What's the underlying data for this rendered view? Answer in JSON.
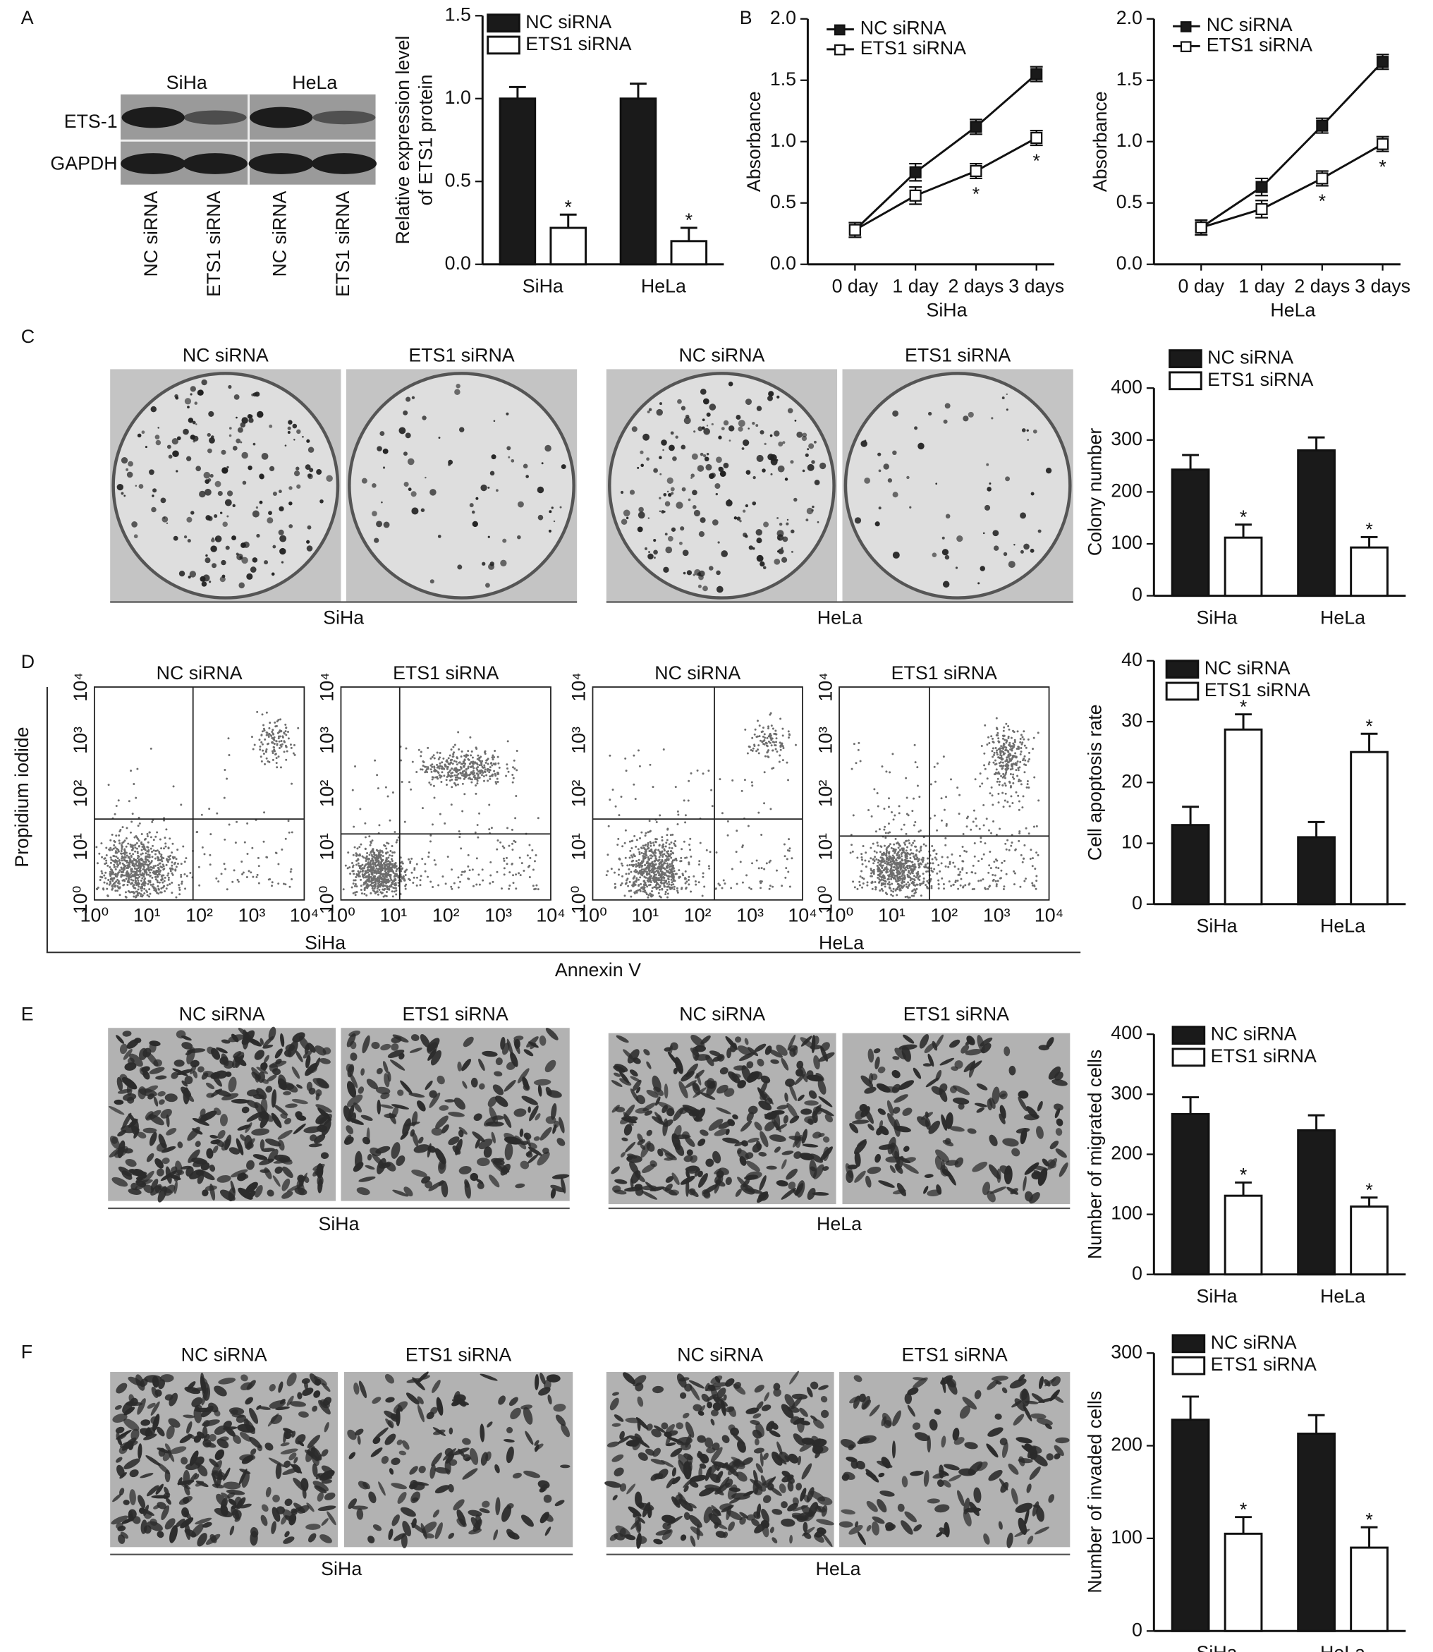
{
  "chart_data": [
    {
      "type": "bar",
      "ylabel": [
        "Relative expression level",
        "of ETS1 protein"
      ],
      "categories": [
        "SiHa",
        "HeLa"
      ],
      "series": [
        {
          "name": "NC siRNA",
          "color": "#1a1a1a",
          "values": [
            1.0,
            1.0
          ],
          "errors": [
            0.07,
            0.09
          ],
          "annotations": [
            null,
            null
          ]
        },
        {
          "name": "ETS1 siRNA",
          "color": "#ffffff",
          "values": [
            0.22,
            0.14
          ],
          "errors": [
            0.08,
            0.08
          ],
          "annotations": [
            "*",
            "*"
          ]
        }
      ],
      "ylim": [
        0,
        1.5
      ],
      "yticks": [
        {
          "value": 0,
          "label": "0.0"
        },
        0.5,
        {
          "value": 1,
          "label": "1.0"
        },
        1.5
      ]
    },
    {
      "type": "line",
      "ylabel": "Absorbance",
      "xlabel": "SiHa",
      "categories": [
        "0 day",
        "1 day",
        "2 days",
        "3 days"
      ],
      "series": [
        {
          "name": "NC siRNA",
          "color": "#1a1a1a",
          "values": [
            0.28,
            0.75,
            1.12,
            1.55
          ],
          "errors": [
            0.06,
            0.07,
            0.06,
            0.06
          ],
          "annotations": [
            null,
            null,
            null,
            null
          ]
        },
        {
          "name": "ETS1 siRNA",
          "color": "#ffffff",
          "values": [
            0.28,
            0.56,
            0.76,
            1.03
          ],
          "errors": [
            0.06,
            0.07,
            0.06,
            0.06
          ],
          "annotations": [
            null,
            null,
            "*",
            "*"
          ]
        }
      ],
      "ylim": [
        0,
        2
      ],
      "yticks": [
        {
          "value": 0,
          "label": "0.0"
        },
        0.5,
        {
          "value": 1,
          "label": "1.0"
        },
        1.5,
        {
          "value": 2,
          "label": "2.0"
        }
      ]
    },
    {
      "type": "line",
      "ylabel": "Absorbance",
      "xlabel": "HeLa",
      "categories": [
        "0 day",
        "1 day",
        "2 days",
        "3 days"
      ],
      "series": [
        {
          "name": "NC siRNA",
          "color": "#1a1a1a",
          "values": [
            0.3,
            0.63,
            1.13,
            1.65
          ],
          "errors": [
            0.06,
            0.07,
            0.06,
            0.06
          ],
          "annotations": [
            null,
            null,
            null,
            null
          ]
        },
        {
          "name": "ETS1 siRNA",
          "color": "#ffffff",
          "values": [
            0.3,
            0.45,
            0.7,
            0.98
          ],
          "errors": [
            0.06,
            0.07,
            0.06,
            0.06
          ],
          "annotations": [
            null,
            null,
            "*",
            "*"
          ]
        }
      ],
      "ylim": [
        0,
        2
      ],
      "yticks": [
        {
          "value": 0,
          "label": "0.0"
        },
        0.5,
        {
          "value": 1,
          "label": "1.0"
        },
        1.5,
        {
          "value": 2,
          "label": "2.0"
        }
      ]
    },
    {
      "type": "bar",
      "ylabel": "Colony number",
      "categories": [
        "SiHa",
        "HeLa"
      ],
      "series": [
        {
          "name": "NC siRNA",
          "color": "#1a1a1a",
          "values": [
            243,
            280
          ],
          "errors": [
            28,
            25
          ],
          "annotations": [
            null,
            null
          ]
        },
        {
          "name": "ETS1 siRNA",
          "color": "#ffffff",
          "values": [
            112,
            93
          ],
          "errors": [
            25,
            20
          ],
          "annotations": [
            "*",
            "*"
          ]
        }
      ],
      "ylim": [
        0,
        400
      ],
      "yticks": [
        0,
        100,
        200,
        300,
        400
      ]
    },
    {
      "type": "bar",
      "ylabel": "Cell apoptosis rate",
      "categories": [
        "SiHa",
        "HeLa"
      ],
      "series": [
        {
          "name": "NC siRNA",
          "color": "#1a1a1a",
          "values": [
            13,
            11
          ],
          "errors": [
            3,
            2.5
          ],
          "annotations": [
            null,
            null
          ]
        },
        {
          "name": "ETS1 siRNA",
          "color": "#ffffff",
          "values": [
            28.7,
            25
          ],
          "errors": [
            2.5,
            3
          ],
          "annotations": [
            "*",
            "*"
          ]
        }
      ],
      "ylim": [
        0,
        40
      ],
      "yticks": [
        0,
        10,
        20,
        30,
        40
      ]
    },
    {
      "type": "bar",
      "ylabel": "Number of migrated cells",
      "categories": [
        "SiHa",
        "HeLa"
      ],
      "series": [
        {
          "name": "NC siRNA",
          "color": "#1a1a1a",
          "values": [
            267,
            240
          ],
          "errors": [
            28,
            25
          ],
          "annotations": [
            null,
            null
          ]
        },
        {
          "name": "ETS1 siRNA",
          "color": "#ffffff",
          "values": [
            131,
            113
          ],
          "errors": [
            22,
            15
          ],
          "annotations": [
            "*",
            "*"
          ]
        }
      ],
      "ylim": [
        0,
        400
      ],
      "yticks": [
        0,
        100,
        200,
        300,
        400
      ]
    },
    {
      "type": "bar",
      "ylabel": "Number of invaded cells",
      "categories": [
        "SiHa",
        "HeLa"
      ],
      "series": [
        {
          "name": "NC siRNA",
          "color": "#1a1a1a",
          "values": [
            228,
            213
          ],
          "errors": [
            25,
            20
          ],
          "annotations": [
            null,
            null
          ]
        },
        {
          "name": "ETS1 siRNA",
          "color": "#ffffff",
          "values": [
            105,
            90
          ],
          "errors": [
            18,
            22
          ],
          "annotations": [
            "*",
            "*"
          ]
        }
      ],
      "ylim": [
        0,
        300
      ],
      "yticks": [
        0,
        100,
        200,
        300
      ]
    }
  ],
  "figure": {
    "panel_labels": [
      "A",
      "B",
      "C",
      "D",
      "E",
      "F"
    ],
    "blot": {
      "cell_lines": [
        "SiHa",
        "HeLa"
      ],
      "proteins": [
        "ETS-1",
        "GAPDH"
      ],
      "lanes": [
        "NC siRNA",
        "ETS1 siRNA",
        "NC siRNA",
        "ETS1 siRNA"
      ]
    },
    "colony": {
      "conditions": [
        "NC siRNA",
        "ETS1 siRNA",
        "NC siRNA",
        "ETS1 siRNA"
      ],
      "cell_lines": [
        "SiHa",
        "HeLa"
      ]
    },
    "flow": {
      "conditions": [
        "NC siRNA",
        "ETS1 siRNA",
        "NC siRNA",
        "ETS1 siRNA"
      ],
      "cell_lines": [
        "SiHa",
        "HeLa"
      ],
      "tick_labels": [
        "10⁰",
        "10¹",
        "10²",
        "10³",
        "10⁴"
      ],
      "ylabel": "Propidium iodide",
      "xlabel": "Annexin V"
    },
    "migration": {
      "conditions": [
        "NC siRNA",
        "ETS1 siRNA",
        "NC siRNA",
        "ETS1 siRNA"
      ],
      "cell_lines": [
        "SiHa",
        "HeLa"
      ]
    },
    "invasion": {
      "conditions": [
        "NC siRNA",
        "ETS1 siRNA",
        "NC siRNA",
        "ETS1 siRNA"
      ],
      "cell_lines": [
        "SiHa",
        "HeLa"
      ]
    }
  }
}
